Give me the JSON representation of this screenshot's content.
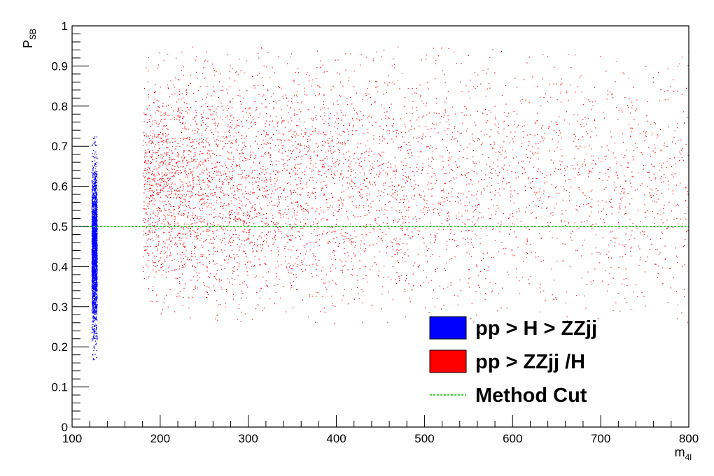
{
  "chart_data": {
    "type": "scatter",
    "title": "",
    "xlabel": "m",
    "xlabel_sub": "4l",
    "ylabel": "P",
    "ylabel_sub": "SB",
    "xlim": [
      100,
      800
    ],
    "ylim": [
      0,
      1
    ],
    "x_ticks": [
      100,
      200,
      300,
      400,
      500,
      600,
      700,
      800
    ],
    "y_ticks": [
      0,
      0.1,
      0.2,
      0.3,
      0.4,
      0.5,
      0.6,
      0.7,
      0.8,
      0.9,
      1
    ],
    "x_tick_labels": [
      "100",
      "200",
      "300",
      "400",
      "500",
      "600",
      "700",
      "800"
    ],
    "y_tick_labels": [
      "0",
      "0.1",
      "0.2",
      "0.3",
      "0.4",
      "0.5",
      "0.6",
      "0.7",
      "0.8",
      "0.9",
      "1"
    ],
    "grid": false,
    "legend_position": "bottom-right",
    "series": [
      {
        "name": "pp > H > ZZjj",
        "color": "#0000ff",
        "x_range": [
          122,
          128
        ],
        "y_range": [
          0.16,
          0.73
        ],
        "y_center": 0.45
      },
      {
        "name": "pp > ZZjj /H",
        "color": "#ff0000",
        "x_range": [
          180,
          800
        ],
        "y_range": [
          0.26,
          0.95
        ],
        "y_center": 0.6
      }
    ],
    "lines": [
      {
        "name": "Method Cut",
        "type": "horizontal",
        "y": 0.5,
        "color": "#00cc00",
        "style": "dashed"
      }
    ]
  }
}
